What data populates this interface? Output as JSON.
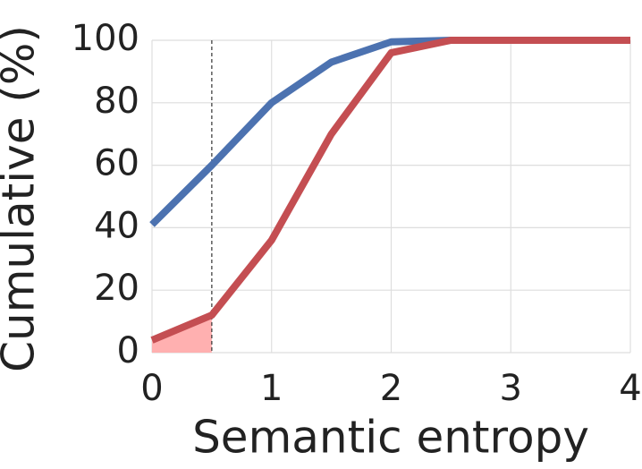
{
  "chart_data": {
    "type": "line",
    "xlabel": "Semantic entropy",
    "ylabel": "Cumulative (%)",
    "x": [
      0,
      0.5,
      1,
      1.5,
      2,
      2.5,
      3,
      3.5,
      4
    ],
    "series": [
      {
        "color": "#4c72b0",
        "values": [
          41,
          60,
          80,
          93,
          99.5,
          100,
          100,
          100,
          100
        ]
      },
      {
        "color": "#c44e52",
        "values": [
          4,
          12,
          36,
          70,
          96,
          100,
          100,
          100,
          100
        ]
      }
    ],
    "threshold": 0.5,
    "shade_color": "#ffb0b0",
    "xlim": [
      0,
      4
    ],
    "xticks": [
      0,
      1,
      2,
      3,
      4
    ],
    "ylim": [
      0,
      100
    ],
    "yticks": [
      0,
      20,
      40,
      60,
      80,
      100
    ],
    "grid": true
  }
}
